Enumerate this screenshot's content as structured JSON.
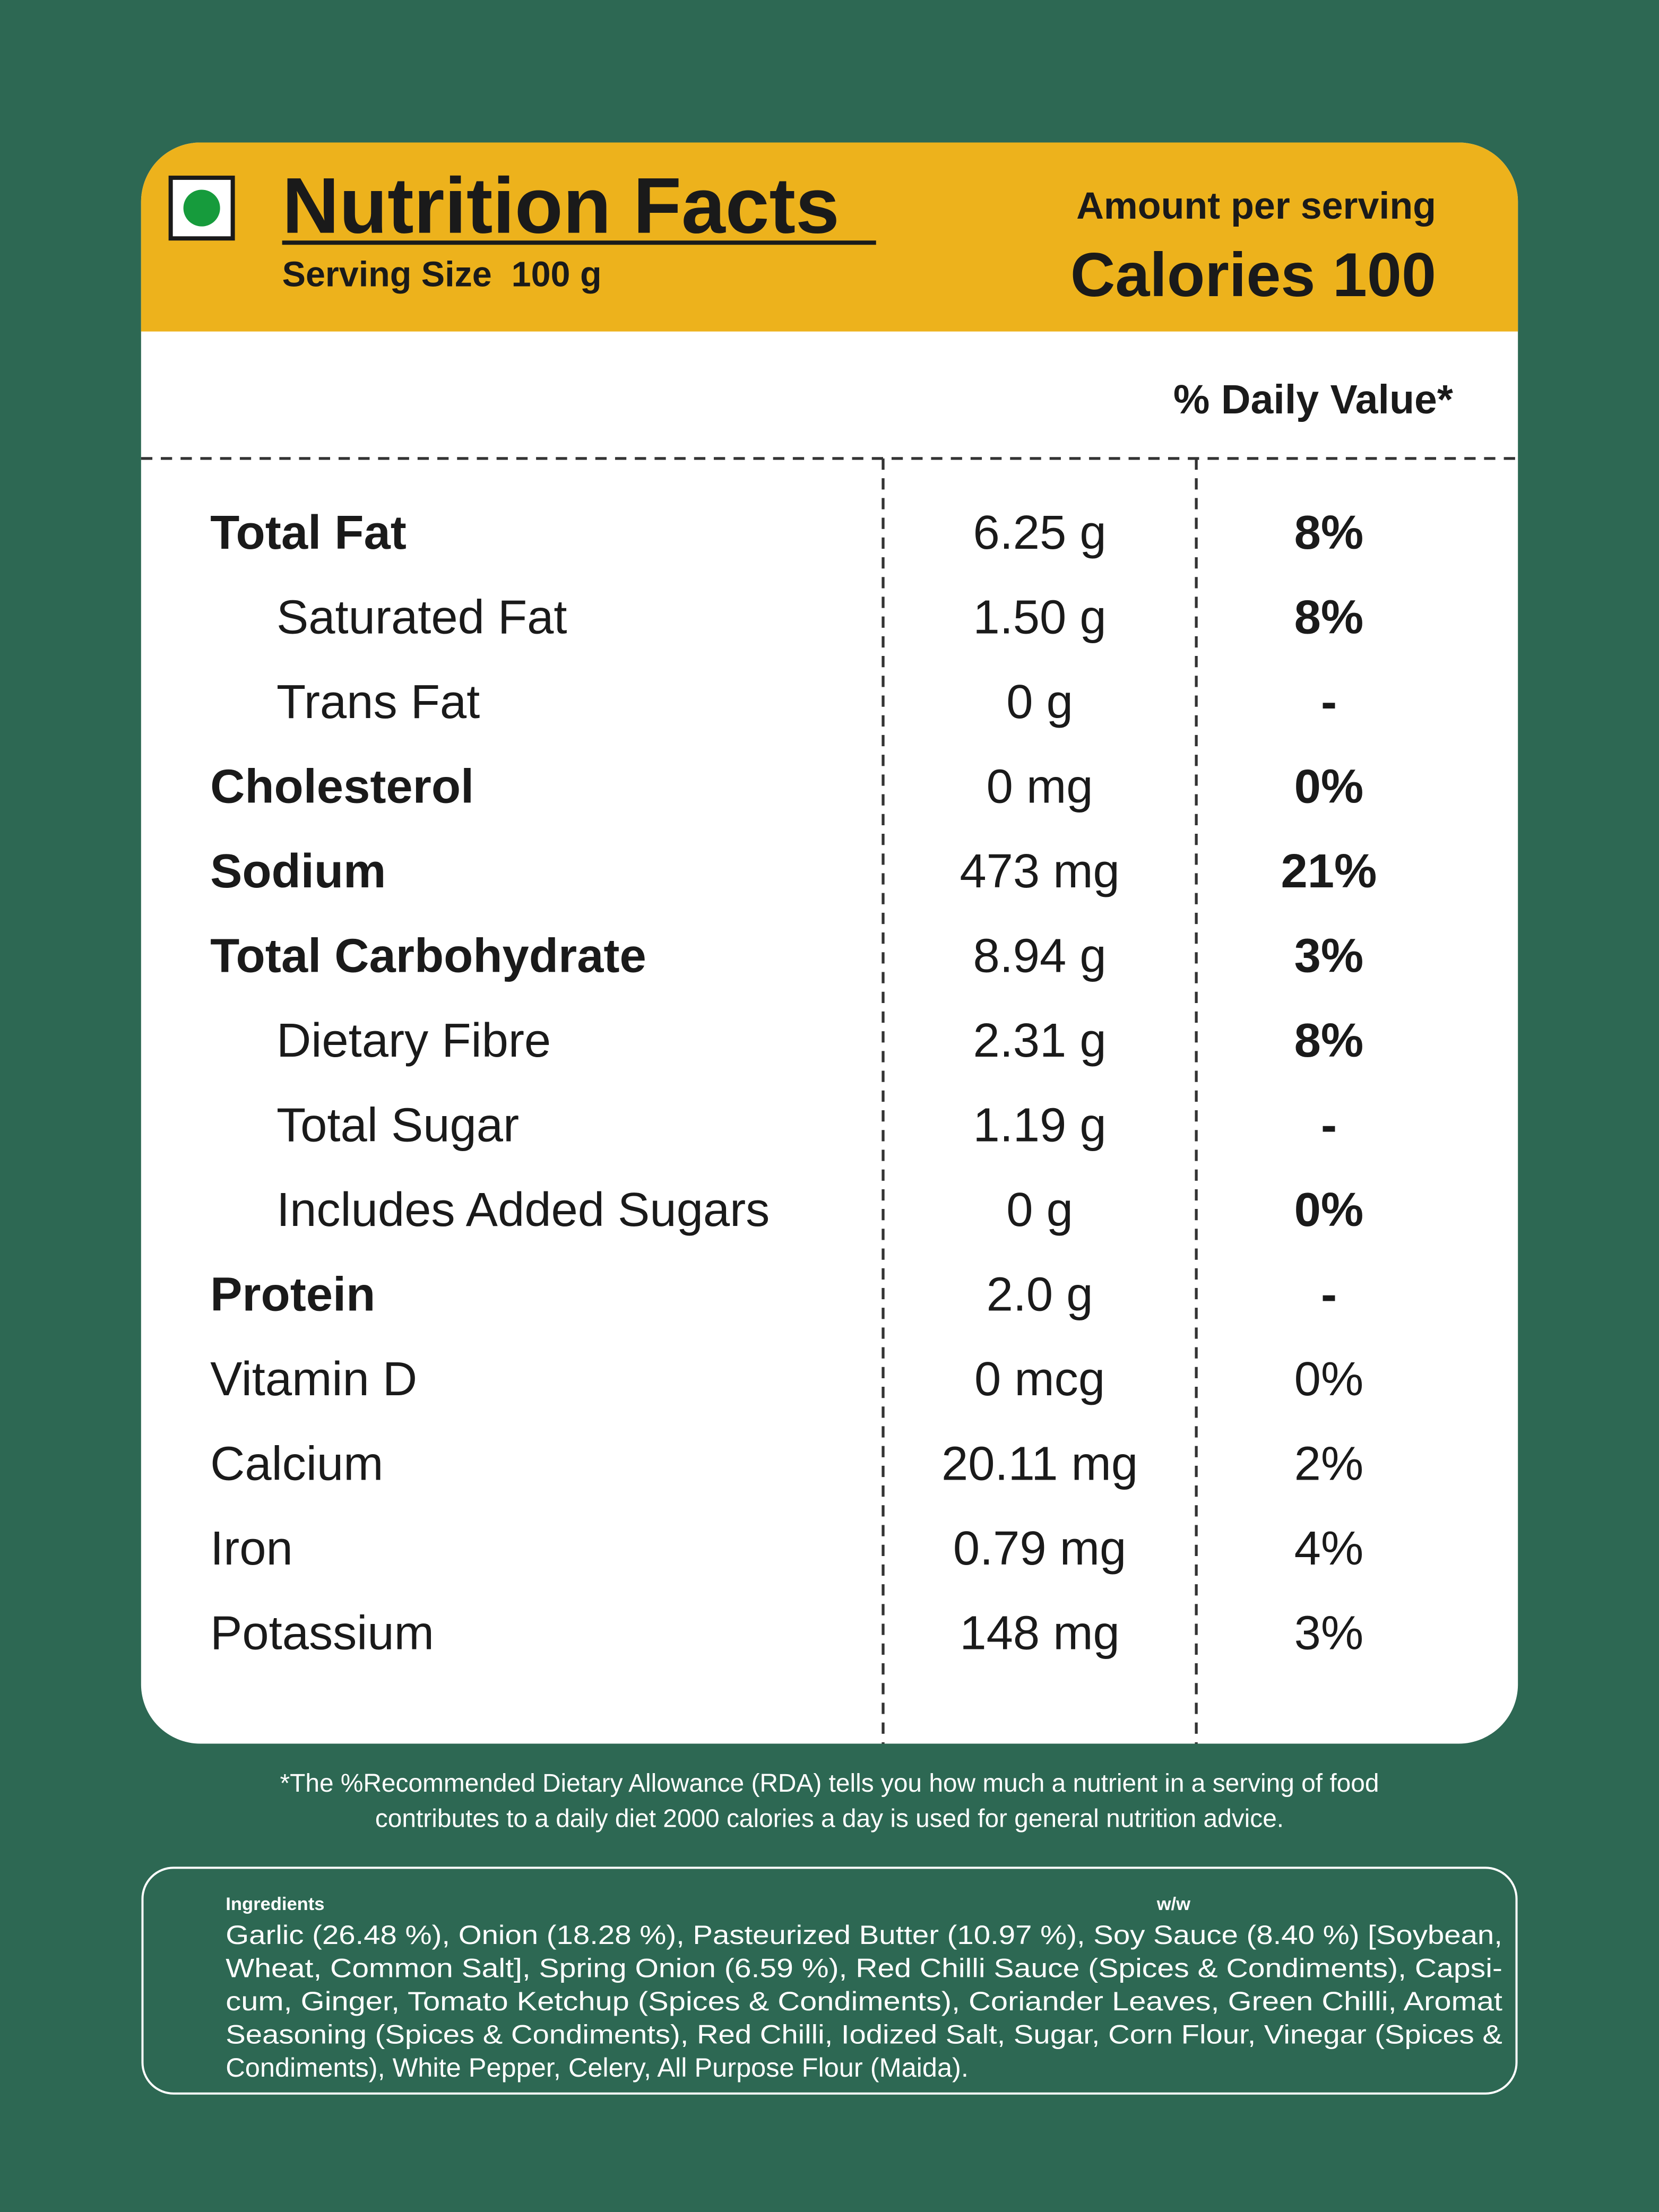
{
  "header": {
    "title": "Nutrition Facts",
    "serving_size": "Serving Size  100 g",
    "amount_label": "Amount per serving",
    "calories": "Calories 100"
  },
  "daily_value_header": "% Daily Value*",
  "table": {
    "rows": [
      [
        "Total Fat",
        "6.25 g",
        "8%"
      ],
      [
        "Saturated Fat",
        "1.50 g",
        "8%"
      ],
      [
        "Trans Fat",
        "0 g",
        "-"
      ],
      [
        "Cholesterol",
        "0 mg",
        "0%"
      ],
      [
        "Sodium",
        "473 mg",
        "21%"
      ],
      [
        "Total Carbohydrate",
        "8.94 g",
        "3%"
      ],
      [
        "Dietary Fibre",
        "2.31 g",
        "8%"
      ],
      [
        "Total Sugar",
        "1.19 g",
        "-"
      ],
      [
        "Includes Added Sugars",
        "0 g",
        "0%"
      ],
      [
        "Protein",
        "2.0 g",
        "-"
      ],
      [
        "Vitamin D",
        "0 mcg",
        "0%"
      ],
      [
        "Calcium",
        "20.11 mg",
        "2%"
      ],
      [
        "Iron",
        "0.79 mg",
        "4%"
      ],
      [
        "Potassium",
        "148 mg",
        "3%"
      ]
    ]
  },
  "footnote": [
    "*The %Recommended Dietary Allowance (RDA) tells you how much a nutrient in a serving of food",
    "contributes to a daily diet 2000 calories a day is used for general nutrition advice."
  ],
  "ingredients": {
    "label": "Ingredients",
    "unit": "w/w",
    "lines": [
      "Garlic (26.48 %), Onion (18.28 %), Pasteurized Butter (10.97 %), Soy Sauce (8.40 %) [Soybean,",
      "Wheat, Common Salt], Spring Onion (6.59 %), Red Chilli Sauce (Spices & Condiments), Capsi-",
      "cum, Ginger, Tomato Ketchup (Spices & Condiments), Coriander Leaves, Green Chilli, Aromat",
      "Seasoning (Spices & Condiments), Red Chilli, Iodized Salt, Sugar, Corn Flour, Vinegar (Spices &",
      "Condiments), White Pepper, Celery, All Purpose Flour (Maida)."
    ]
  }
}
